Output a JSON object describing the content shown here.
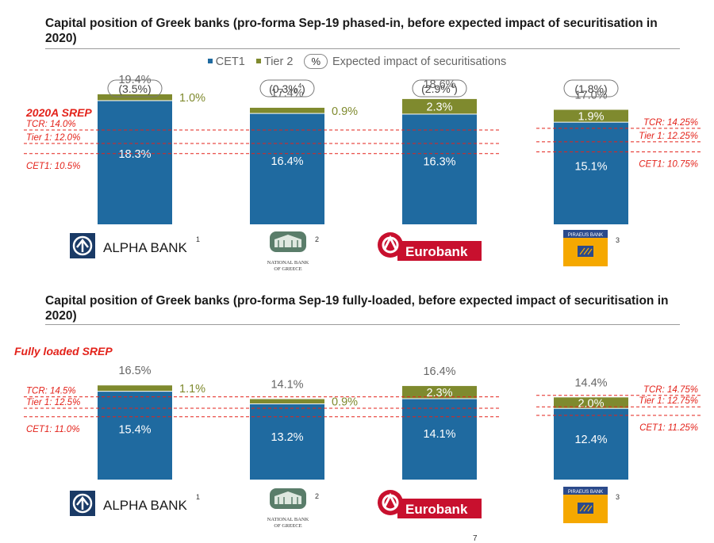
{
  "titles": {
    "top": "Capital position of Greek banks (pro-forma Sep-19 phased-in, before expected impact of securitisation in 2020)",
    "bottom": "Capital position of Greek banks (pro-forma Sep-19 fully-loaded, before expected impact of securitisation in 2020)"
  },
  "legend": {
    "cet1": "CET1",
    "tier2": "Tier 2",
    "pct_symbol": "%",
    "securitisation": "Expected impact of securitisations"
  },
  "colors": {
    "cet1": "#1f6aa0",
    "tier2": "#7f8a2e",
    "srep": "#e3231b"
  },
  "banks": [
    "Alpha Bank",
    "National Bank of Greece",
    "Eurobank",
    "Piraeus Bank"
  ],
  "logos": {
    "alpha": "ALPHA BANK",
    "alpha_sup": "1",
    "nbg_line1": "NATIONAL BANK",
    "nbg_line2": "OF GREECE",
    "nbg_sup": "2",
    "eurobank": "Eurobank",
    "piraeus": "PIRAEUS BANK",
    "piraeus_sup": "3"
  },
  "page_number": "7",
  "chart_data": [
    {
      "type": "bar",
      "stacked": true,
      "title": "Capital position of Greek banks (pro-forma Sep-19 phased-in, before expected impact of securitisation in 2020)",
      "categories": [
        "Alpha Bank",
        "National Bank of Greece",
        "Eurobank",
        "Piraeus Bank"
      ],
      "series": [
        {
          "name": "CET1",
          "values": [
            18.3,
            16.4,
            16.3,
            15.1
          ],
          "labels": [
            "18.3%",
            "16.4%",
            "16.3%",
            "15.1%"
          ]
        },
        {
          "name": "Tier 2",
          "values": [
            1.0,
            0.9,
            2.3,
            1.9
          ],
          "labels": [
            "1.0%",
            "0.9%",
            "2.3%",
            "1.9%"
          ]
        }
      ],
      "totals": [
        "19.4%",
        "17.4%",
        "18.6%",
        "17.0%"
      ],
      "securitisation_impact": [
        "(3.5%)",
        "(0.3%",
        "(2.9%",
        "(1.8%)"
      ],
      "securitisation_sup": [
        "",
        "4",
        "4",
        ""
      ],
      "srep_title": "2020A SREP",
      "srep_left": {
        "tcr": 14.0,
        "tier1": 12.0,
        "cet1": 10.5,
        "labels": [
          "TCR: 14.0%",
          "Tier 1: 12.0%",
          "CET1: 10.5%"
        ]
      },
      "srep_right": {
        "tcr": 14.25,
        "tier1": 12.25,
        "cet1": 10.75,
        "labels": [
          "TCR: 14.25%",
          "Tier 1: 12.25%",
          "CET1: 10.75%"
        ]
      }
    },
    {
      "type": "bar",
      "stacked": true,
      "title": "Capital position of Greek banks (pro-forma Sep-19 fully-loaded, before expected impact of securitisation in 2020)",
      "categories": [
        "Alpha Bank",
        "National Bank of Greece",
        "Eurobank",
        "Piraeus Bank"
      ],
      "series": [
        {
          "name": "CET1",
          "values": [
            15.4,
            13.2,
            14.1,
            12.4
          ],
          "labels": [
            "15.4%",
            "13.2%",
            "14.1%",
            "12.4%"
          ]
        },
        {
          "name": "Tier 2",
          "values": [
            1.1,
            0.9,
            2.3,
            2.0
          ],
          "labels": [
            "1.1%",
            "0.9%",
            "2.3%",
            "2.0%"
          ]
        }
      ],
      "totals": [
        "16.5%",
        "14.1%",
        "16.4%",
        "14.4%"
      ],
      "srep_title": "Fully loaded SREP",
      "srep_left": {
        "tcr": 14.5,
        "tier1": 12.5,
        "cet1": 11.0,
        "labels": [
          "TCR: 14.5%",
          "Tier 1: 12.5%",
          "CET1: 11.0%"
        ]
      },
      "srep_right": {
        "tcr": 14.75,
        "tier1": 12.75,
        "cet1": 11.25,
        "labels": [
          "TCR: 14.75%",
          "Tier 1: 12.75%",
          "CET1: 11.25%"
        ]
      }
    }
  ]
}
